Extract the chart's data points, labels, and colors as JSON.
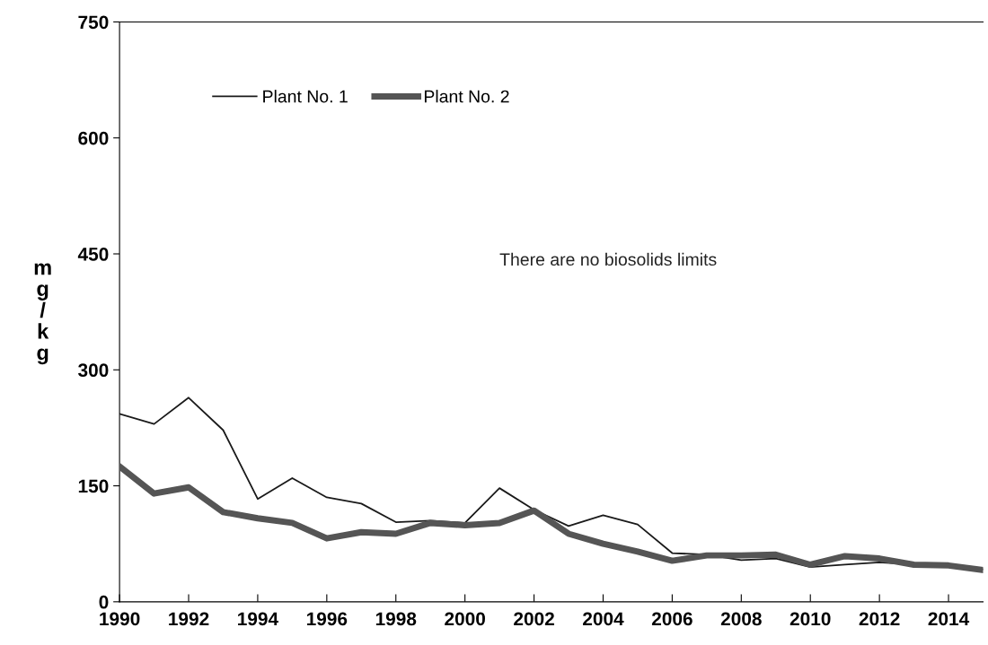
{
  "chart_data": {
    "type": "line",
    "x": [
      1990,
      1991,
      1992,
      1993,
      1994,
      1995,
      1996,
      1997,
      1998,
      1999,
      2000,
      2001,
      2002,
      2003,
      2004,
      2005,
      2006,
      2007,
      2008,
      2009,
      2010,
      2011,
      2012,
      2013,
      2014,
      2015
    ],
    "series": [
      {
        "name": "Plant No. 1",
        "color": "#1a1a1a",
        "values": [
          243,
          230,
          264,
          222,
          133,
          160,
          135,
          127,
          103,
          105,
          102,
          147,
          119,
          98,
          112,
          100,
          63,
          61,
          54,
          56,
          45,
          48,
          51,
          48,
          46,
          42
        ]
      },
      {
        "name": "Plant No. 2",
        "color": "#555555",
        "values": [
          175,
          140,
          148,
          116,
          108,
          102,
          82,
          90,
          88,
          102,
          99,
          102,
          118,
          88,
          75,
          65,
          53,
          60,
          60,
          61,
          48,
          59,
          56,
          48,
          47,
          41
        ]
      }
    ],
    "ylabel": "mg/kg",
    "annotations": [
      "There are no biosolids limits"
    ],
    "xlim": [
      1990,
      2015
    ],
    "xticks": [
      1990,
      1992,
      1994,
      1996,
      1998,
      2000,
      2002,
      2004,
      2006,
      2008,
      2010,
      2012,
      2014
    ],
    "ylim": [
      0,
      750
    ],
    "yticks": [
      0,
      150,
      300,
      450,
      600,
      750
    ],
    "grid": false,
    "legend": "top left",
    "marker": "none",
    "line_style": "solid"
  }
}
